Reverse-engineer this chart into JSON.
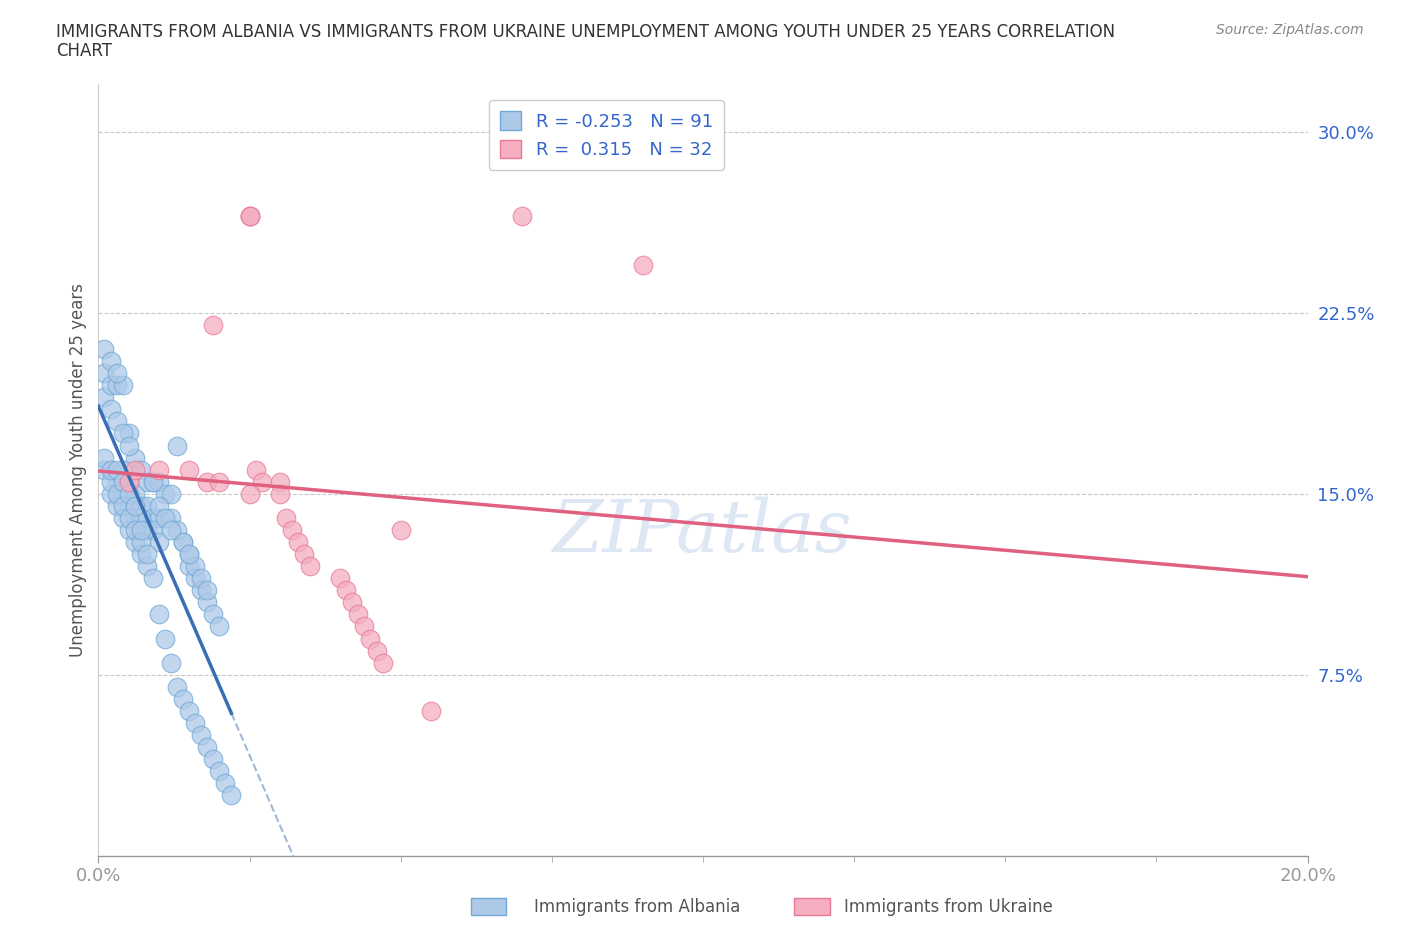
{
  "title_line1": "IMMIGRANTS FROM ALBANIA VS IMMIGRANTS FROM UKRAINE UNEMPLOYMENT AMONG YOUTH UNDER 25 YEARS CORRELATION",
  "title_line2": "CHART",
  "source": "Source: ZipAtlas.com",
  "xlabel_label": "Immigrants from Albania",
  "ylabel_label": "Immigrants from Ukraine",
  "ylabel_axis": "Unemployment Among Youth under 25 years",
  "xlim": [
    0.0,
    0.2
  ],
  "ylim": [
    0.0,
    0.32
  ],
  "ytick_positions": [
    0.075,
    0.15,
    0.225,
    0.3
  ],
  "ytick_labels": [
    "7.5%",
    "15.0%",
    "22.5%",
    "30.0%"
  ],
  "xtick_positions": [
    0.0,
    0.2
  ],
  "xtick_labels": [
    "0.0%",
    "20.0%"
  ],
  "hlines": [
    0.075,
    0.15,
    0.225,
    0.3
  ],
  "albania_R": -0.253,
  "albania_N": 91,
  "ukraine_R": 0.315,
  "ukraine_N": 32,
  "albania_color": "#aec9e8",
  "albania_edge_color": "#6fa8d4",
  "ukraine_color": "#f4aec0",
  "ukraine_edge_color": "#e87898",
  "albania_line_color": "#3a6fb5",
  "ukraine_line_color": "#e06080",
  "dashed_line_color": "#a0b8d8",
  "watermark_text": "ZIPatlas",
  "albania_points_x": [
    0.005,
    0.006,
    0.007,
    0.008,
    0.009,
    0.01,
    0.011,
    0.012,
    0.013,
    0.004,
    0.005,
    0.006,
    0.007,
    0.008,
    0.009,
    0.01,
    0.003,
    0.004,
    0.005,
    0.006,
    0.007,
    0.008,
    0.009,
    0.01,
    0.002,
    0.003,
    0.004,
    0.005,
    0.006,
    0.007,
    0.008,
    0.001,
    0.002,
    0.003,
    0.004,
    0.005,
    0.006,
    0.007,
    0.001,
    0.002,
    0.003,
    0.004,
    0.005,
    0.001,
    0.002,
    0.003,
    0.004,
    0.001,
    0.002,
    0.003,
    0.001,
    0.002,
    0.003,
    0.004,
    0.005,
    0.006,
    0.007,
    0.008,
    0.009,
    0.01,
    0.011,
    0.012,
    0.013,
    0.014,
    0.015,
    0.016,
    0.017,
    0.018,
    0.019,
    0.02,
    0.021,
    0.022,
    0.015,
    0.016,
    0.017,
    0.018,
    0.019,
    0.02,
    0.014,
    0.015,
    0.016,
    0.017,
    0.018,
    0.012,
    0.013,
    0.014,
    0.015,
    0.01,
    0.011,
    0.012,
    0.009
  ],
  "albania_points_y": [
    0.175,
    0.165,
    0.16,
    0.155,
    0.155,
    0.155,
    0.15,
    0.15,
    0.17,
    0.16,
    0.155,
    0.15,
    0.145,
    0.145,
    0.14,
    0.14,
    0.155,
    0.15,
    0.145,
    0.14,
    0.14,
    0.135,
    0.135,
    0.13,
    0.15,
    0.145,
    0.14,
    0.135,
    0.13,
    0.125,
    0.12,
    0.16,
    0.155,
    0.15,
    0.145,
    0.14,
    0.135,
    0.13,
    0.19,
    0.185,
    0.18,
    0.175,
    0.17,
    0.2,
    0.195,
    0.195,
    0.195,
    0.21,
    0.205,
    0.2,
    0.165,
    0.16,
    0.16,
    0.155,
    0.15,
    0.145,
    0.135,
    0.125,
    0.115,
    0.1,
    0.09,
    0.08,
    0.07,
    0.065,
    0.06,
    0.055,
    0.05,
    0.045,
    0.04,
    0.035,
    0.03,
    0.025,
    0.12,
    0.115,
    0.11,
    0.105,
    0.1,
    0.095,
    0.13,
    0.125,
    0.12,
    0.115,
    0.11,
    0.14,
    0.135,
    0.13,
    0.125,
    0.145,
    0.14,
    0.135,
    0.155
  ],
  "ukraine_points_x": [
    0.005,
    0.006,
    0.018,
    0.019,
    0.025,
    0.025,
    0.025,
    0.026,
    0.027,
    0.03,
    0.03,
    0.031,
    0.032,
    0.033,
    0.034,
    0.035,
    0.04,
    0.041,
    0.042,
    0.043,
    0.044,
    0.045,
    0.046,
    0.047,
    0.07,
    0.09,
    0.01,
    0.015,
    0.02,
    0.025,
    0.05,
    0.055
  ],
  "ukraine_points_y": [
    0.155,
    0.16,
    0.155,
    0.22,
    0.265,
    0.265,
    0.265,
    0.16,
    0.155,
    0.155,
    0.15,
    0.14,
    0.135,
    0.13,
    0.125,
    0.12,
    0.115,
    0.11,
    0.105,
    0.1,
    0.095,
    0.09,
    0.085,
    0.08,
    0.265,
    0.245,
    0.16,
    0.16,
    0.155,
    0.15,
    0.135,
    0.06
  ]
}
